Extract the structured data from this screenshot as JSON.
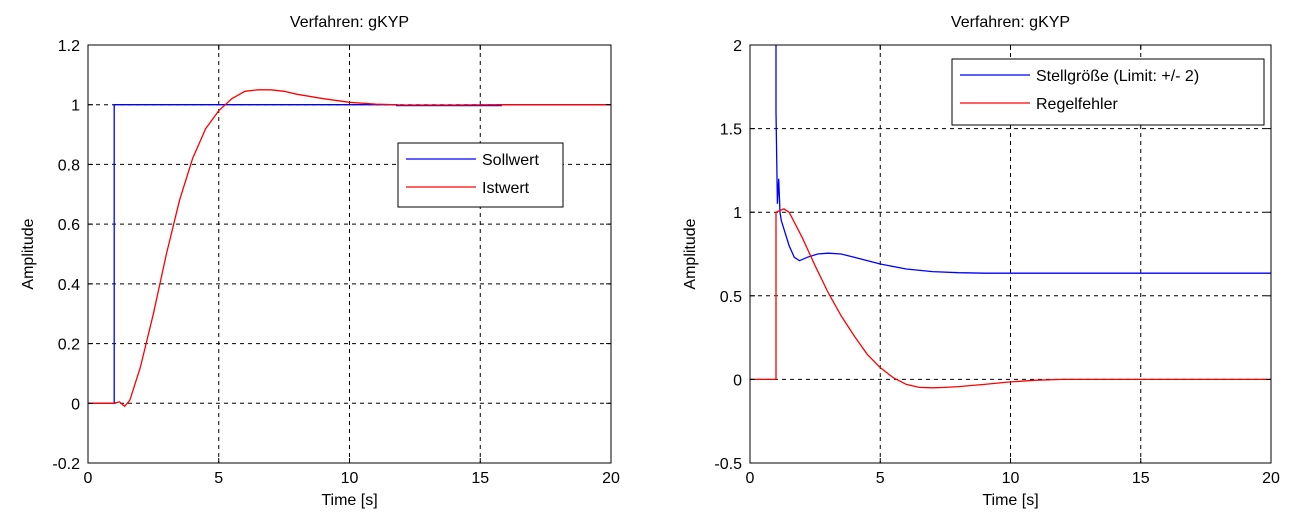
{
  "figure": {
    "background": "#ffffff"
  },
  "chart_data": [
    {
      "type": "line",
      "title": "Verfahren: gKYP",
      "xlabel": "Time [s]",
      "ylabel": "Amplitude",
      "xlim": [
        0,
        20
      ],
      "ylim": [
        -0.2,
        1.2
      ],
      "xticks": [
        0,
        5,
        10,
        15,
        20
      ],
      "xtick_labels": [
        "0",
        "5",
        "10",
        "15",
        "20"
      ],
      "yticks": [
        -0.2,
        0,
        0.2,
        0.4,
        0.6,
        0.8,
        1,
        1.2
      ],
      "ytick_labels": [
        "-0.2",
        "0",
        "0.2",
        "0.4",
        "0.6",
        "0.8",
        "1",
        "1.2"
      ],
      "grid": true,
      "legend_position": "right",
      "series": [
        {
          "name": "Sollwert",
          "color": "#0000ff",
          "x": [
            0,
            1,
            1,
            10.7,
            11.8,
            11.8,
            15.8,
            15.8,
            20
          ],
          "y": [
            0,
            0,
            1,
            1,
            1,
            0.997,
            0.997,
            1,
            1
          ]
        },
        {
          "name": "Istwert",
          "color": "#ff0000",
          "x": [
            0,
            1,
            1.2,
            1.4,
            1.6,
            2,
            2.5,
            3,
            3.5,
            4,
            4.5,
            5,
            5.5,
            6,
            6.5,
            7,
            7.5,
            8,
            9,
            10,
            11,
            12,
            14,
            16,
            18,
            20
          ],
          "y": [
            0,
            0,
            0.005,
            -0.01,
            0.01,
            0.12,
            0.3,
            0.5,
            0.68,
            0.82,
            0.92,
            0.98,
            1.02,
            1.045,
            1.05,
            1.05,
            1.045,
            1.035,
            1.02,
            1.008,
            1.002,
            0.999,
            0.999,
            1,
            1,
            1
          ]
        }
      ]
    },
    {
      "type": "line",
      "title": "Verfahren: gKYP",
      "xlabel": "Time [s]",
      "ylabel": "Amplitude",
      "xlim": [
        0,
        20
      ],
      "ylim": [
        -0.5,
        2
      ],
      "xticks": [
        0,
        5,
        10,
        15,
        20
      ],
      "xtick_labels": [
        "0",
        "5",
        "10",
        "15",
        "20"
      ],
      "yticks": [
        -0.5,
        0,
        0.5,
        1,
        1.5,
        2
      ],
      "ytick_labels": [
        "-0.5",
        "0",
        "0.5",
        "1",
        "1.5",
        "2"
      ],
      "grid": true,
      "legend_position": "top-right",
      "series": [
        {
          "name": "Stellgröße (Limit: +/- 2)",
          "color": "#0000ff",
          "x": [
            1,
            1,
            1.05,
            1.1,
            1.15,
            1.2,
            1.3,
            1.5,
            1.7,
            1.9,
            2.2,
            2.6,
            3,
            3.5,
            4,
            5,
            6,
            7,
            8,
            9,
            10,
            12,
            15,
            20
          ],
          "y": [
            2,
            1.6,
            1.05,
            1.2,
            1.0,
            0.95,
            0.9,
            0.8,
            0.73,
            0.71,
            0.73,
            0.75,
            0.755,
            0.75,
            0.73,
            0.69,
            0.66,
            0.645,
            0.638,
            0.635,
            0.635,
            0.635,
            0.635,
            0.635
          ]
        },
        {
          "name": "Regelfehler",
          "color": "#ff0000",
          "x": [
            0,
            1,
            1,
            1.3,
            1.5,
            2,
            2.5,
            3,
            3.5,
            4,
            4.5,
            5,
            5.5,
            6,
            6.5,
            7,
            7.5,
            8,
            9,
            10,
            11,
            12,
            14,
            20
          ],
          "y": [
            0,
            0,
            1,
            1.02,
            1.0,
            0.85,
            0.68,
            0.52,
            0.38,
            0.26,
            0.15,
            0.07,
            0.01,
            -0.03,
            -0.048,
            -0.05,
            -0.048,
            -0.043,
            -0.03,
            -0.015,
            -0.005,
            0,
            0,
            0
          ]
        }
      ]
    }
  ]
}
